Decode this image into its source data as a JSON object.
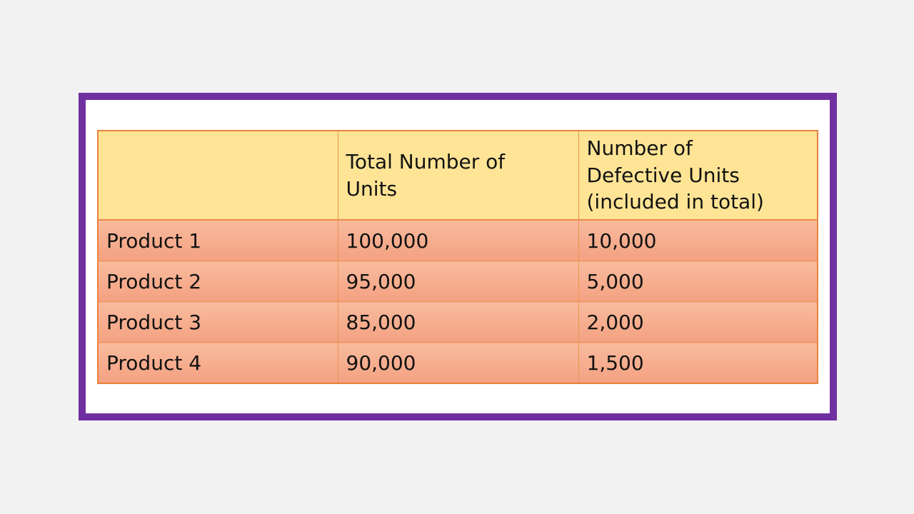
{
  "slide": {
    "background_color": "#F2F2F2",
    "slide_color": "#FFFFFF",
    "frame_border_color": "#7030A0"
  },
  "table": {
    "header": [
      "",
      "Total Number of\nUnits",
      "Number of\nDefective Units\n(included in total)"
    ],
    "rows": [
      [
        "Product 1",
        "100,000",
        "10,000"
      ],
      [
        "Product 2",
        "95,000",
        "5,000"
      ],
      [
        "Product 3",
        "85,000",
        "2,000"
      ],
      [
        "Product 4",
        "90,000",
        "1,500"
      ]
    ],
    "colors": {
      "header_background": "#FFE495",
      "row_gradient_top": "#F8BB9D",
      "row_gradient_bottom": "#F4A181",
      "inner_border": "#EE9150",
      "outer_border": "#E8823C",
      "text": "#121212"
    }
  }
}
